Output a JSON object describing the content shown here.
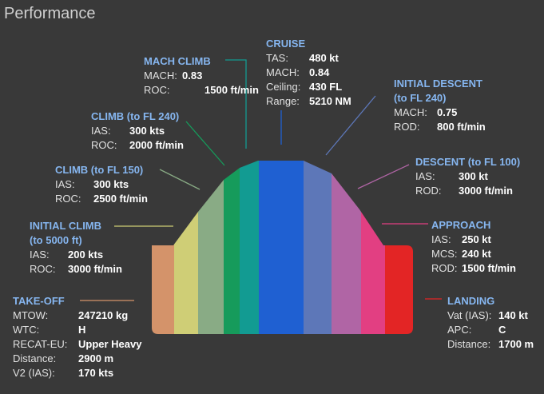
{
  "title": "Performance",
  "colors": {
    "background": "#393939",
    "phase_title": "#86b6f0",
    "bands": [
      "#d4936a",
      "#cfce76",
      "#89ab85",
      "#169b5b",
      "#129b92",
      "#1f60d2",
      "#1f60d2",
      "#5d77b8",
      "#b065a5",
      "#e23f82",
      "#e32525"
    ]
  },
  "phases": {
    "takeoff": {
      "title": "TAKE-OFF",
      "rows": [
        {
          "label": "MTOW:",
          "value": "247210 kg"
        },
        {
          "label": "WTC:",
          "value": "H"
        },
        {
          "label": "RECAT-EU:",
          "value": "Upper Heavy"
        },
        {
          "label": "Distance:",
          "value": "2900 m"
        },
        {
          "label": "V2 (IAS):",
          "value": "170 kts"
        }
      ]
    },
    "initial_climb": {
      "title": "INITIAL CLIMB",
      "title2": "(to 5000 ft)",
      "rows": [
        {
          "label": "IAS:",
          "value": "200 kts"
        },
        {
          "label": "ROC:",
          "value": "3000 ft/min"
        }
      ]
    },
    "climb_fl150": {
      "title": "CLIMB (to FL 150)",
      "rows": [
        {
          "label": "IAS:",
          "value": "300 kts"
        },
        {
          "label": "ROC:",
          "value": "2500 ft/min"
        }
      ]
    },
    "climb_fl240": {
      "title": "CLIMB (to FL 240)",
      "rows": [
        {
          "label": "IAS:",
          "value": "300 kts"
        },
        {
          "label": "ROC:",
          "value": "2000 ft/min"
        }
      ]
    },
    "mach_climb": {
      "title": "MACH CLIMB",
      "rows": [
        {
          "label": "MACH:",
          "value": "0.83"
        },
        {
          "label": "ROC:",
          "value": "1500 ft/min"
        }
      ]
    },
    "cruise": {
      "title": "CRUISE",
      "rows": [
        {
          "label": "TAS:",
          "value": "480 kt"
        },
        {
          "label": "MACH:",
          "value": "0.84"
        },
        {
          "label": "Ceiling:",
          "value": "430 FL"
        },
        {
          "label": "Range:",
          "value": "5210 NM"
        }
      ]
    },
    "initial_descent": {
      "title": "INITIAL DESCENT",
      "title2": "(to FL 240)",
      "rows": [
        {
          "label": "MACH:",
          "value": "0.75"
        },
        {
          "label": "ROD:",
          "value": "800 ft/min"
        }
      ]
    },
    "descent_fl100": {
      "title": "DESCENT (to FL 100)",
      "rows": [
        {
          "label": "IAS:",
          "value": "300 kt"
        },
        {
          "label": "ROD:",
          "value": "3000 ft/min"
        }
      ]
    },
    "approach": {
      "title": "APPROACH",
      "rows": [
        {
          "label": "IAS:",
          "value": "250 kt"
        },
        {
          "label": "MCS:",
          "value": "240 kt"
        },
        {
          "label": "ROD:",
          "value": "1500 ft/min"
        }
      ]
    },
    "landing": {
      "title": "LANDING",
      "rows": [
        {
          "label": "Vat (IAS):",
          "value": "140 kt"
        },
        {
          "label": "APC:",
          "value": "C"
        },
        {
          "label": "Distance:",
          "value": "1700 m"
        }
      ]
    }
  }
}
